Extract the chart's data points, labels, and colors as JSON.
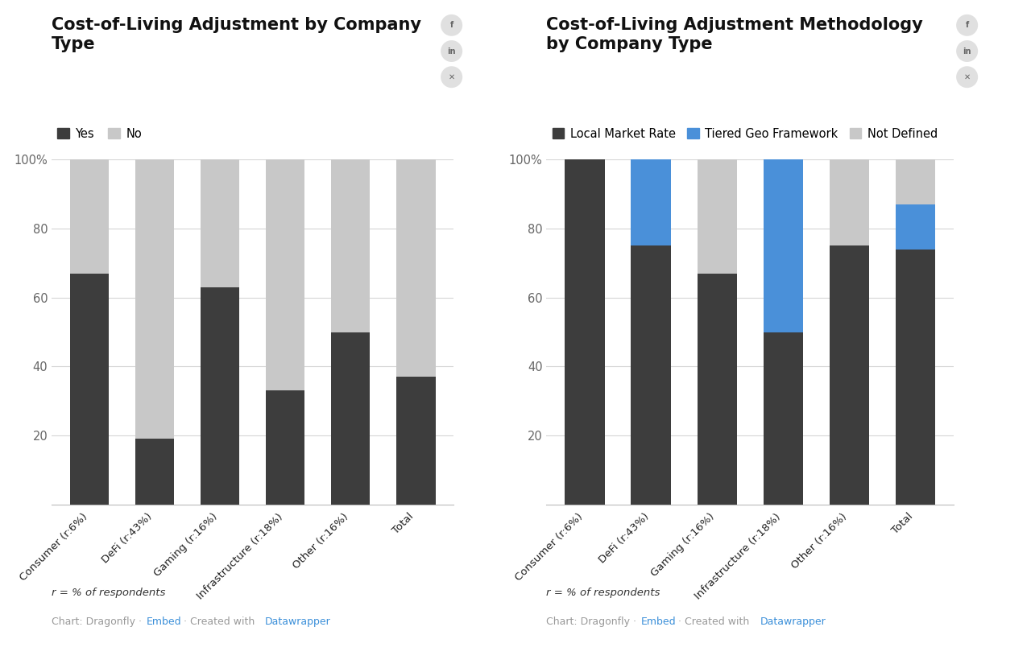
{
  "chart1": {
    "title": "Cost-of-Living Adjustment by Company\nType",
    "categories": [
      "Consumer (r:6%)",
      "DeFi (r:43%)",
      "Gaming (r:16%)",
      "Infrastructure (r:18%)",
      "Other (r:16%)",
      "Total"
    ],
    "yes_values": [
      67,
      19,
      63,
      33,
      50,
      37
    ],
    "no_values": [
      33,
      81,
      37,
      67,
      50,
      63
    ],
    "yes_color": "#3d3d3d",
    "no_color": "#c8c8c8",
    "legend_labels": [
      "Yes",
      "No"
    ]
  },
  "chart2": {
    "title": "Cost-of-Living Adjustment Methodology\nby Company Type",
    "categories": [
      "Consumer (r:6%)",
      "DeFi (r:43%)",
      "Gaming (r:16%)",
      "Infrastructure (r:18%)",
      "Other (r:16%)",
      "Total"
    ],
    "local_market": [
      100,
      75,
      67,
      50,
      75,
      74
    ],
    "tiered_geo": [
      0,
      25,
      0,
      50,
      0,
      13
    ],
    "not_defined": [
      0,
      0,
      33,
      0,
      25,
      13
    ],
    "local_color": "#3d3d3d",
    "tiered_color": "#4a90d9",
    "not_defined_color": "#c8c8c8",
    "legend_labels": [
      "Local Market Rate",
      "Tiered Geo Framework",
      "Not Defined"
    ]
  },
  "background_color": "#ffffff",
  "grid_color": "#d5d5d5",
  "axis_label_color": "#666666",
  "footnote_text": "r = % of respondents",
  "credit_text_plain": "Chart: Dragonfly · ",
  "credit_embed": "Embed",
  "credit_mid": " · Created with ",
  "credit_datawrapper": "Datawrapper",
  "credit_color": "#999999",
  "credit_link_color": "#3a8fd9",
  "icon_color": "#aaaaaa"
}
